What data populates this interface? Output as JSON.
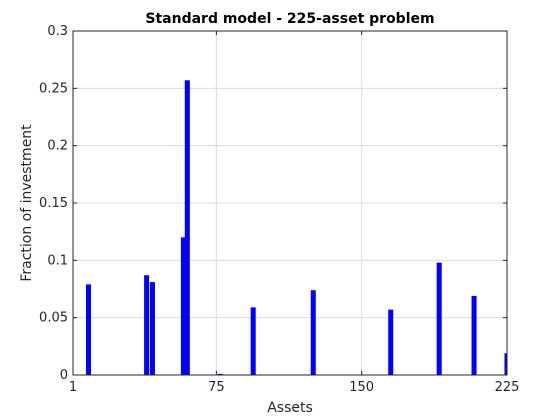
{
  "chart_data": {
    "type": "bar",
    "title": "Standard model - 225-asset problem",
    "xlabel": "Assets",
    "ylabel": "Fraction of investment",
    "xlim": [
      1,
      225
    ],
    "ylim": [
      0,
      0.3
    ],
    "xticks": [
      1,
      75,
      150,
      225
    ],
    "xtick_labels": [
      "1",
      "75",
      "150",
      "225"
    ],
    "yticks": [
      0,
      0.05,
      0.1,
      0.15,
      0.2,
      0.25,
      0.3
    ],
    "ytick_labels": [
      "0",
      "0.05",
      "0.1",
      "0.15",
      "0.2",
      "0.25",
      "0.3"
    ],
    "grid": true,
    "bar_color": "#0000ff",
    "points": [
      {
        "x": 9,
        "y": 0.079
      },
      {
        "x": 39,
        "y": 0.087
      },
      {
        "x": 42,
        "y": 0.081
      },
      {
        "x": 58,
        "y": 0.12
      },
      {
        "x": 60,
        "y": 0.257
      },
      {
        "x": 77,
        "y": 0.001
      },
      {
        "x": 94,
        "y": 0.059
      },
      {
        "x": 125,
        "y": 0.074
      },
      {
        "x": 165,
        "y": 0.057
      },
      {
        "x": 190,
        "y": 0.098
      },
      {
        "x": 208,
        "y": 0.069
      },
      {
        "x": 225,
        "y": 0.019
      }
    ]
  }
}
